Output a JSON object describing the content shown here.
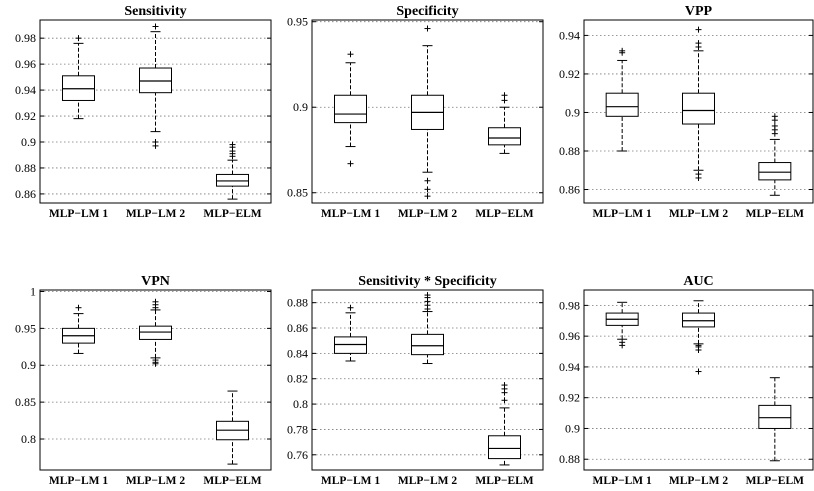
{
  "chart_data": [
    {
      "type": "box",
      "title": "Sensitivity",
      "categories": [
        "MLP−LM 1",
        "MLP−LM 2",
        "MLP−ELM"
      ],
      "yticks": [
        0.86,
        0.88,
        0.9,
        0.92,
        0.94,
        0.96,
        0.98
      ],
      "ytick_labels": [
        "0.86",
        "0.88",
        "0.9",
        "0.92",
        "0.94",
        "0.96",
        "0.98"
      ],
      "ylim": [
        0.853,
        0.994
      ],
      "grid": "y-dotted",
      "boxes": [
        {
          "min": 0.918,
          "q1": 0.932,
          "median": 0.941,
          "q3": 0.951,
          "max": 0.976,
          "outliers": [
            0.98
          ]
        },
        {
          "min": 0.908,
          "q1": 0.938,
          "median": 0.947,
          "q3": 0.957,
          "max": 0.985,
          "outliers": [
            0.989,
            0.9,
            0.897
          ]
        },
        {
          "min": 0.856,
          "q1": 0.866,
          "median": 0.87,
          "q3": 0.875,
          "max": 0.886,
          "outliers": [
            0.889,
            0.891,
            0.893,
            0.896,
            0.898
          ]
        }
      ]
    },
    {
      "type": "box",
      "title": "Specificity",
      "categories": [
        "MLP−LM 1",
        "MLP−LM 2",
        "MLP−ELM"
      ],
      "yticks": [
        0.85,
        0.9,
        0.95
      ],
      "ytick_labels": [
        "0.85",
        "0.9",
        "0.95"
      ],
      "ylim": [
        0.844,
        0.951
      ],
      "grid": "y-dotted",
      "boxes": [
        {
          "min": 0.877,
          "q1": 0.891,
          "median": 0.896,
          "q3": 0.907,
          "max": 0.926,
          "outliers": [
            0.931,
            0.867
          ]
        },
        {
          "min": 0.862,
          "q1": 0.887,
          "median": 0.897,
          "q3": 0.907,
          "max": 0.936,
          "outliers": [
            0.946,
            0.857,
            0.852,
            0.848
          ]
        },
        {
          "min": 0.873,
          "q1": 0.878,
          "median": 0.882,
          "q3": 0.888,
          "max": 0.9,
          "outliers": [
            0.904,
            0.907
          ]
        }
      ]
    },
    {
      "type": "box",
      "title": "VPP",
      "categories": [
        "MLP−LM 1",
        "MLP−LM 2",
        "MLP−ELM"
      ],
      "yticks": [
        0.86,
        0.88,
        0.9,
        0.92,
        0.94
      ],
      "ytick_labels": [
        "0.86",
        "0.88",
        "0.9",
        "0.92",
        "0.94"
      ],
      "ylim": [
        0.853,
        0.948
      ],
      "grid": "y-dotted",
      "boxes": [
        {
          "min": 0.88,
          "q1": 0.898,
          "median": 0.903,
          "q3": 0.91,
          "max": 0.927,
          "outliers": [
            0.931,
            0.932
          ]
        },
        {
          "min": 0.87,
          "q1": 0.894,
          "median": 0.901,
          "q3": 0.91,
          "max": 0.932,
          "outliers": [
            0.934,
            0.936,
            0.943,
            0.868,
            0.866
          ]
        },
        {
          "min": 0.857,
          "q1": 0.865,
          "median": 0.869,
          "q3": 0.874,
          "max": 0.886,
          "outliers": [
            0.889,
            0.891,
            0.893,
            0.896,
            0.898
          ]
        }
      ]
    },
    {
      "type": "box",
      "title": "VPN",
      "categories": [
        "MLP−LM 1",
        "MLP−LM 2",
        "MLP−ELM"
      ],
      "yticks": [
        0.8,
        0.85,
        0.9,
        0.95,
        1
      ],
      "ytick_labels": [
        "0.8",
        "0.85",
        "0.9",
        "0.95",
        "1"
      ],
      "ylim": [
        0.758,
        1.002
      ],
      "grid": "y-dotted",
      "boxes": [
        {
          "min": 0.916,
          "q1": 0.93,
          "median": 0.94,
          "q3": 0.95,
          "max": 0.97,
          "outliers": [
            0.978
          ]
        },
        {
          "min": 0.91,
          "q1": 0.935,
          "median": 0.945,
          "q3": 0.953,
          "max": 0.975,
          "outliers": [
            0.978,
            0.982,
            0.986,
            0.907,
            0.904,
            0.902
          ]
        },
        {
          "min": 0.766,
          "q1": 0.799,
          "median": 0.812,
          "q3": 0.824,
          "max": 0.865,
          "outliers": []
        }
      ]
    },
    {
      "type": "box",
      "title": "Sensitivity * Specificity",
      "categories": [
        "MLP−LM 1",
        "MLP−LM 2",
        "MLP−ELM"
      ],
      "yticks": [
        0.76,
        0.78,
        0.8,
        0.82,
        0.84,
        0.86,
        0.88
      ],
      "ytick_labels": [
        "0.76",
        "0.78",
        "0.8",
        "0.82",
        "0.84",
        "0.86",
        "0.88"
      ],
      "ylim": [
        0.748,
        0.89
      ],
      "grid": "y-dotted",
      "boxes": [
        {
          "min": 0.834,
          "q1": 0.84,
          "median": 0.847,
          "q3": 0.853,
          "max": 0.872,
          "outliers": [
            0.876
          ]
        },
        {
          "min": 0.832,
          "q1": 0.839,
          "median": 0.846,
          "q3": 0.855,
          "max": 0.873,
          "outliers": [
            0.875,
            0.878,
            0.881,
            0.884,
            0.886
          ]
        },
        {
          "min": 0.752,
          "q1": 0.757,
          "median": 0.765,
          "q3": 0.775,
          "max": 0.797,
          "outliers": [
            0.803,
            0.809,
            0.812,
            0.815
          ]
        }
      ]
    },
    {
      "type": "box",
      "title": "AUC",
      "categories": [
        "MLP−LM 1",
        "MLP−LM 2",
        "MLP−ELM"
      ],
      "yticks": [
        0.88,
        0.9,
        0.92,
        0.94,
        0.96,
        0.98
      ],
      "ytick_labels": [
        "0.88",
        "0.9",
        "0.92",
        "0.94",
        "0.96",
        "0.98"
      ],
      "ylim": [
        0.873,
        0.99
      ],
      "grid": "y-dotted",
      "boxes": [
        {
          "min": 0.958,
          "q1": 0.967,
          "median": 0.971,
          "q3": 0.975,
          "max": 0.982,
          "outliers": [
            0.956,
            0.954
          ]
        },
        {
          "min": 0.955,
          "q1": 0.966,
          "median": 0.97,
          "q3": 0.975,
          "max": 0.983,
          "outliers": [
            0.954,
            0.953,
            0.951,
            0.937
          ]
        },
        {
          "min": 0.879,
          "q1": 0.9,
          "median": 0.907,
          "q3": 0.915,
          "max": 0.933,
          "outliers": []
        }
      ]
    }
  ]
}
